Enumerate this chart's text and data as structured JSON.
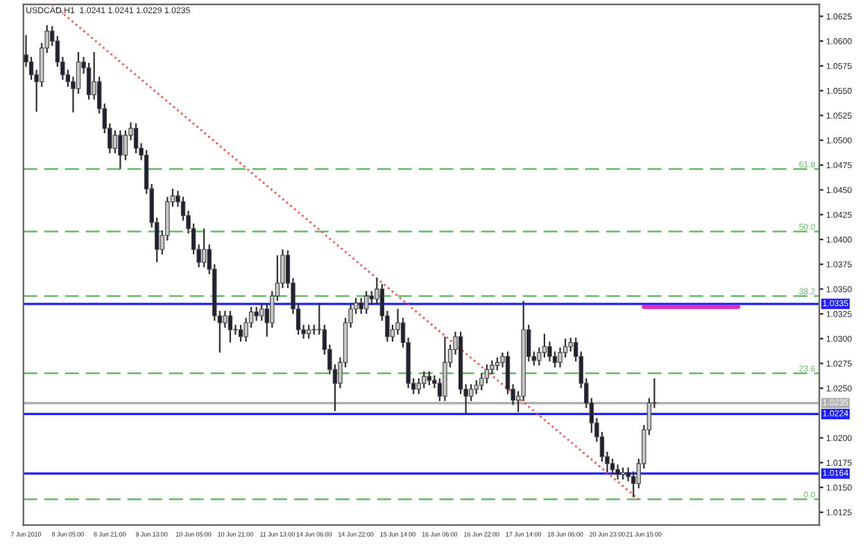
{
  "chart_data": {
    "type": "candlestick",
    "title": "USDCAD,H1  1.0241 1.0241 1.0229 1.0235",
    "categories": [
      "7 Jun 2010",
      null,
      null,
      null,
      null,
      null,
      null,
      null,
      "8 Jun 05:00",
      null,
      null,
      null,
      null,
      null,
      null,
      null,
      "8 Jun 21:00",
      null,
      null,
      null,
      null,
      null,
      null,
      null,
      "9 Jun 13:00",
      null,
      null,
      null,
      null,
      null,
      null,
      null,
      "10 Jun 05:00",
      null,
      null,
      null,
      null,
      null,
      null,
      null,
      "10 Jun 21:00",
      null,
      null,
      null,
      null,
      null,
      null,
      null,
      "11 Jun 13:00",
      null,
      null,
      null,
      null,
      null,
      null,
      "14 Jun 06:00",
      null,
      null,
      null,
      null,
      null,
      null,
      null,
      "14 Jun 22:00",
      null,
      null,
      null,
      null,
      null,
      null,
      null,
      "15 Jun 14:00",
      null,
      null,
      null,
      null,
      null,
      null,
      null,
      "16 Jun 06:00",
      null,
      null,
      null,
      null,
      null,
      null,
      null,
      "16 Jun 22:00",
      null,
      null,
      null,
      null,
      null,
      null,
      null,
      "17 Jun 14:00",
      null,
      null,
      null,
      null,
      null,
      null,
      null,
      "18 Jun 06:00",
      null,
      null,
      null,
      null,
      null,
      null,
      null,
      "20 Jun 23:00",
      null,
      null,
      null,
      null,
      null,
      null,
      "21 Jun 15:00",
      null,
      null,
      null,
      null,
      null,
      null,
      null,
      null,
      null,
      null,
      null,
      null,
      null,
      null,
      null,
      null,
      null,
      null,
      null,
      null,
      null,
      null,
      null,
      null,
      null,
      null,
      null,
      null,
      null,
      null,
      null,
      null,
      null
    ],
    "ohlc": [
      [
        1.0586,
        1.0606,
        1.0574,
        1.0579
      ],
      [
        1.0579,
        1.0584,
        1.0561,
        1.0566
      ],
      [
        1.0566,
        1.0571,
        1.0529,
        1.0559
      ],
      [
        1.0559,
        1.0598,
        1.0554,
        1.0593
      ],
      [
        1.0593,
        1.0616,
        1.0588,
        1.061
      ],
      [
        1.061,
        1.0615,
        1.0595,
        1.06
      ],
      [
        1.06,
        1.0605,
        1.0574,
        1.0579
      ],
      [
        1.0579,
        1.0584,
        1.0561,
        1.0566
      ],
      [
        1.0566,
        1.0571,
        1.0554,
        1.0559
      ],
      [
        1.0559,
        1.0564,
        1.0528,
        1.0552
      ],
      [
        1.0552,
        1.0589,
        1.0547,
        1.0579
      ],
      [
        1.0579,
        1.0584,
        1.0567,
        1.0573
      ],
      [
        1.0573,
        1.0578,
        1.0541,
        1.0546
      ],
      [
        1.0546,
        1.0589,
        1.0541,
        1.0559
      ],
      [
        1.0559,
        1.0564,
        1.0527,
        1.0532
      ],
      [
        1.0532,
        1.0537,
        1.0507,
        1.0512
      ],
      [
        1.0512,
        1.0517,
        1.0487,
        1.0492
      ],
      [
        1.0492,
        1.051,
        1.0487,
        1.0505
      ],
      [
        1.0505,
        1.051,
        1.0471,
        1.0485
      ],
      [
        1.0485,
        1.051,
        1.048,
        1.0505
      ],
      [
        1.0505,
        1.0518,
        1.05,
        1.0512
      ],
      [
        1.0512,
        1.0517,
        1.0487,
        1.0492
      ],
      [
        1.0492,
        1.0497,
        1.048,
        1.0485
      ],
      [
        1.0485,
        1.049,
        1.0446,
        1.0451
      ],
      [
        1.0451,
        1.0456,
        1.0412,
        1.0417
      ],
      [
        1.0417,
        1.0422,
        1.0377,
        1.039
      ],
      [
        1.039,
        1.0409,
        1.0385,
        1.0404
      ],
      [
        1.0404,
        1.0443,
        1.0399,
        1.0438
      ],
      [
        1.0438,
        1.0451,
        1.0433,
        1.0444
      ],
      [
        1.0444,
        1.0449,
        1.0433,
        1.0438
      ],
      [
        1.0438,
        1.0443,
        1.0419,
        1.0424
      ],
      [
        1.0424,
        1.0429,
        1.0406,
        1.0411
      ],
      [
        1.0411,
        1.0416,
        1.0385,
        1.039
      ],
      [
        1.039,
        1.0395,
        1.0372,
        1.0377
      ],
      [
        1.0377,
        1.0411,
        1.0372,
        1.039
      ],
      [
        1.039,
        1.0395,
        1.0365,
        1.037
      ],
      [
        1.037,
        1.0375,
        1.0318,
        1.0323
      ],
      [
        1.0323,
        1.0328,
        1.0286,
        1.0316
      ],
      [
        1.0316,
        1.0328,
        1.0311,
        1.0323
      ],
      [
        1.0323,
        1.0328,
        1.0296,
        1.0309
      ],
      [
        1.0309,
        1.0314,
        1.0304,
        1.0309
      ],
      [
        1.0309,
        1.0314,
        1.0297,
        1.0302
      ],
      [
        1.0302,
        1.0321,
        1.0297,
        1.0316
      ],
      [
        1.0316,
        1.0332,
        1.0311,
        1.0327
      ],
      [
        1.0327,
        1.0332,
        1.0318,
        1.0323
      ],
      [
        1.0323,
        1.0335,
        1.0318,
        1.033
      ],
      [
        1.033,
        1.0335,
        1.0302,
        1.0316
      ],
      [
        1.0316,
        1.0348,
        1.0311,
        1.0343
      ],
      [
        1.0343,
        1.0384,
        1.0338,
        1.0356
      ],
      [
        1.0356,
        1.039,
        1.0351,
        1.0384
      ],
      [
        1.0384,
        1.0389,
        1.0351,
        1.0356
      ],
      [
        1.0356,
        1.0361,
        1.0325,
        1.033
      ],
      [
        1.033,
        1.0335,
        1.0304,
        1.0309
      ],
      [
        1.0309,
        1.0314,
        1.03,
        1.0305
      ],
      [
        1.0305,
        1.0314,
        1.03,
        1.0309
      ],
      [
        1.0309,
        1.0314,
        1.0304,
        1.0309
      ],
      [
        1.0309,
        1.0336,
        1.0304,
        1.0309
      ],
      [
        1.0309,
        1.0314,
        1.0284,
        1.0289
      ],
      [
        1.0289,
        1.0294,
        1.0264,
        1.0269
      ],
      [
        1.0269,
        1.0274,
        1.0227,
        1.0255
      ],
      [
        1.0255,
        1.0281,
        1.025,
        1.0276
      ],
      [
        1.0276,
        1.0321,
        1.0271,
        1.0316
      ],
      [
        1.0316,
        1.0335,
        1.0311,
        1.033
      ],
      [
        1.033,
        1.0341,
        1.0325,
        1.0336
      ],
      [
        1.0336,
        1.0341,
        1.0325,
        1.033
      ],
      [
        1.033,
        1.0348,
        1.0325,
        1.0343
      ],
      [
        1.0343,
        1.0348,
        1.0335,
        1.034
      ],
      [
        1.034,
        1.0361,
        1.0335,
        1.035
      ],
      [
        1.035,
        1.0355,
        1.0318,
        1.0323
      ],
      [
        1.0323,
        1.0328,
        1.0297,
        1.0302
      ],
      [
        1.0302,
        1.0314,
        1.0297,
        1.0309
      ],
      [
        1.0309,
        1.033,
        1.0304,
        1.0316
      ],
      [
        1.0316,
        1.0321,
        1.0291,
        1.0296
      ],
      [
        1.0296,
        1.0301,
        1.025,
        1.0255
      ],
      [
        1.0255,
        1.026,
        1.0244,
        1.0249
      ],
      [
        1.0249,
        1.026,
        1.0244,
        1.0255
      ],
      [
        1.0255,
        1.0267,
        1.025,
        1.0262
      ],
      [
        1.0262,
        1.0267,
        1.0253,
        1.0258
      ],
      [
        1.0258,
        1.0263,
        1.025,
        1.0255
      ],
      [
        1.0255,
        1.026,
        1.0237,
        1.0242
      ],
      [
        1.0242,
        1.0302,
        1.0237,
        1.0276
      ],
      [
        1.0276,
        1.0294,
        1.0271,
        1.0289
      ],
      [
        1.0289,
        1.0307,
        1.0284,
        1.0302
      ],
      [
        1.0302,
        1.0307,
        1.0244,
        1.0249
      ],
      [
        1.0249,
        1.0254,
        1.0224,
        1.0242
      ],
      [
        1.0242,
        1.0254,
        1.0237,
        1.0249
      ],
      [
        1.0249,
        1.0258,
        1.0244,
        1.0253
      ],
      [
        1.0253,
        1.0265,
        1.0248,
        1.026
      ],
      [
        1.026,
        1.0274,
        1.0255,
        1.0269
      ],
      [
        1.0269,
        1.0278,
        1.0264,
        1.0273
      ],
      [
        1.0273,
        1.0281,
        1.0268,
        1.0276
      ],
      [
        1.0276,
        1.0286,
        1.0271,
        1.0282
      ],
      [
        1.0282,
        1.0287,
        1.0244,
        1.0249
      ],
      [
        1.0249,
        1.0254,
        1.0233,
        1.0238
      ],
      [
        1.0238,
        1.0247,
        1.0226,
        1.0242
      ],
      [
        1.0242,
        1.0338,
        1.0237,
        1.0309
      ],
      [
        1.0309,
        1.0314,
        1.0277,
        1.0282
      ],
      [
        1.0282,
        1.0287,
        1.0273,
        1.0278
      ],
      [
        1.0278,
        1.0291,
        1.0273,
        1.0286
      ],
      [
        1.0286,
        1.0305,
        1.0281,
        1.0292
      ],
      [
        1.0292,
        1.0297,
        1.0277,
        1.0282
      ],
      [
        1.0282,
        1.0287,
        1.0271,
        1.0276
      ],
      [
        1.0276,
        1.0291,
        1.0271,
        1.0286
      ],
      [
        1.0286,
        1.03,
        1.0281,
        1.0292
      ],
      [
        1.0292,
        1.0301,
        1.0287,
        1.0296
      ],
      [
        1.0296,
        1.0301,
        1.0277,
        1.0282
      ],
      [
        1.0282,
        1.0287,
        1.025,
        1.0255
      ],
      [
        1.0255,
        1.026,
        1.023,
        1.0235
      ],
      [
        1.0235,
        1.024,
        1.0205,
        1.0215
      ],
      [
        1.0215,
        1.022,
        1.0196,
        1.0201
      ],
      [
        1.0201,
        1.0206,
        1.0176,
        1.0181
      ],
      [
        1.0181,
        1.0186,
        1.0165,
        1.0174
      ],
      [
        1.0174,
        1.0179,
        1.0163,
        1.0168
      ],
      [
        1.0168,
        1.0173,
        1.0158,
        1.0163
      ],
      [
        1.0163,
        1.017,
        1.0158,
        1.0165
      ],
      [
        1.0165,
        1.017,
        1.0156,
        1.0161
      ],
      [
        1.0161,
        1.0166,
        1.014,
        1.0154
      ],
      [
        1.0154,
        1.0179,
        1.0149,
        1.0174
      ],
      [
        1.0174,
        1.0213,
        1.0169,
        1.0208
      ],
      [
        1.0208,
        1.024,
        1.0203,
        1.0235
      ],
      [
        1.0235,
        1.026,
        1.023,
        1.0235
      ],
      null,
      null,
      null,
      null,
      null,
      null,
      null,
      null,
      null,
      null,
      null,
      null,
      null,
      null,
      null,
      null,
      null,
      null,
      null,
      null,
      null,
      null,
      null,
      null,
      null,
      null,
      null,
      null,
      null,
      null,
      null
    ],
    "series": [
      {
        "type": "line",
        "color": "#ff5050",
        "line_style": "dotted",
        "values": [
          null,
          null,
          null,
          null,
          null,
          1.0637,
          null,
          null,
          null,
          null,
          null,
          null,
          null,
          null,
          null,
          null,
          null,
          null,
          null,
          null,
          null,
          null,
          null,
          null,
          null,
          null,
          null,
          null,
          null,
          null,
          null,
          null,
          null,
          null,
          null,
          null,
          null,
          null,
          null,
          null,
          null,
          null,
          null,
          null,
          null,
          null,
          null,
          null,
          null,
          null,
          null,
          null,
          null,
          null,
          null,
          null,
          null,
          null,
          null,
          null,
          null,
          null,
          null,
          null,
          null,
          null,
          null,
          null,
          null,
          null,
          null,
          null,
          null,
          null,
          null,
          null,
          null,
          null,
          null,
          null,
          null,
          null,
          null,
          null,
          null,
          null,
          null,
          null,
          null,
          null,
          null,
          null,
          null,
          null,
          null,
          null,
          null,
          null,
          null,
          null,
          null,
          null,
          null,
          null,
          null,
          null,
          null,
          null,
          null,
          null,
          null,
          null,
          null,
          null,
          null,
          null,
          null,
          1.0138,
          null,
          null,
          null,
          null,
          null,
          null,
          null,
          null,
          null,
          null,
          null,
          null,
          null,
          null,
          null,
          null,
          null,
          null,
          null,
          null,
          null,
          null,
          null,
          null,
          null,
          null,
          null,
          null,
          null,
          null,
          null,
          null,
          null,
          null
        ]
      },
      {
        "type": "line",
        "color": "#e030c0",
        "values": [
          null,
          null,
          null,
          null,
          null,
          null,
          null,
          null,
          null,
          null,
          null,
          null,
          null,
          null,
          null,
          null,
          null,
          null,
          null,
          null,
          null,
          null,
          null,
          null,
          null,
          null,
          null,
          null,
          null,
          null,
          null,
          null,
          null,
          null,
          null,
          null,
          null,
          null,
          null,
          null,
          null,
          null,
          null,
          null,
          null,
          null,
          null,
          null,
          null,
          null,
          null,
          null,
          null,
          null,
          null,
          null,
          null,
          null,
          null,
          null,
          null,
          null,
          null,
          null,
          null,
          null,
          null,
          null,
          null,
          null,
          null,
          null,
          null,
          null,
          null,
          null,
          null,
          null,
          null,
          null,
          null,
          null,
          null,
          null,
          null,
          null,
          null,
          null,
          null,
          null,
          null,
          null,
          null,
          null,
          null,
          null,
          null,
          null,
          null,
          null,
          null,
          null,
          null,
          null,
          null,
          null,
          null,
          null,
          null,
          null,
          null,
          null,
          null,
          null,
          null,
          null,
          null,
          null,
          1.0332,
          null,
          null,
          null,
          null,
          null,
          null,
          null,
          null,
          null,
          null,
          null,
          null,
          null,
          null,
          null,
          null,
          null,
          1.0332,
          null,
          null,
          null,
          null,
          null,
          null,
          null,
          null,
          null,
          null,
          null,
          null,
          null,
          null,
          null
        ]
      }
    ],
    "ylim": [
      1.0112,
      1.0637
    ],
    "yticks": [
      1.0125,
      {
        "value": 1.015,
        "label": "1.0150"
      },
      1.0175,
      {
        "value": 1.02,
        "label": "1.0200"
      },
      {
        "value": 1.025,
        "label": "1.0250"
      },
      1.0275,
      {
        "value": 1.03,
        "label": "1.0300"
      },
      1.0325,
      {
        "value": 1.035,
        "label": "1.0350"
      },
      1.0375,
      {
        "value": 1.04,
        "label": "1.0400"
      },
      1.0425,
      {
        "value": 1.045,
        "label": "1.0450"
      },
      1.0475,
      {
        "value": 1.05,
        "label": "1.0500"
      },
      1.0525,
      {
        "value": 1.055,
        "label": "1.0550"
      },
      1.0575,
      {
        "value": 1.06,
        "label": "1.0600"
      },
      1.0625
    ],
    "annotations": [
      {
        "text": "61.8",
        "y": 1.0471
      },
      {
        "text": "50.0",
        "y": 1.0408
      },
      {
        "text": "38.2",
        "y": 1.0343
      },
      {
        "text": "23.6",
        "y": 1.0265
      },
      {
        "text": "0.0",
        "y": 1.0138
      }
    ],
    "ref_lines": [
      {
        "axis": "y",
        "value": 1.0471,
        "color": "#66bb66",
        "line_style": "dashed"
      },
      {
        "axis": "y",
        "value": 1.0408,
        "color": "#66bb66",
        "line_style": "dashed"
      },
      {
        "axis": "y",
        "value": 1.0343,
        "color": "#66bb66",
        "line_style": "dashed"
      },
      {
        "axis": "y",
        "value": 1.0265,
        "color": "#66bb66",
        "line_style": "dashed"
      },
      {
        "axis": "y",
        "value": 1.0138,
        "color": "#66bb66",
        "line_style": "dashed"
      },
      {
        "axis": "y",
        "value": 1.0335,
        "label": "1.0335",
        "color": "#2020ff",
        "line_style": "solid"
      },
      {
        "axis": "y",
        "value": 1.0224,
        "label": "1.0224",
        "color": "#2020ff",
        "line_style": "solid"
      },
      {
        "axis": "y",
        "value": 1.0164,
        "label": "1.0164",
        "color": "#2020ff",
        "line_style": "solid"
      },
      {
        "axis": "y",
        "value": 1.0235,
        "label": "1.0235",
        "color": "#b0b0b0",
        "line_style": "solid"
      }
    ]
  }
}
